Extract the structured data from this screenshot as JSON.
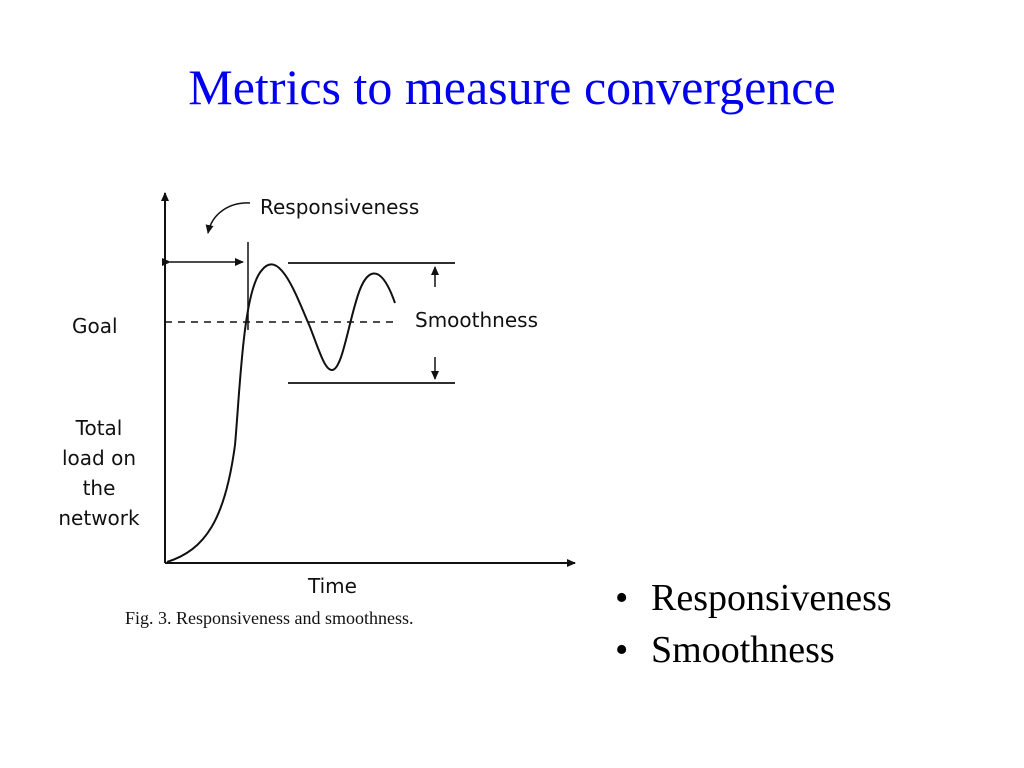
{
  "slide": {
    "title": "Metrics to measure convergence"
  },
  "figure": {
    "responsiveness_label": "Responsiveness",
    "smoothness_label": "Smoothness",
    "goal_label": "Goal",
    "ylabel_lines": [
      "Total",
      "load on",
      "the",
      "network"
    ],
    "xlabel": "Time",
    "caption": "Fig. 3. Responsiveness and smoothness."
  },
  "bullets": {
    "marker": "•",
    "items": [
      "Responsiveness",
      "Smoothness"
    ]
  }
}
